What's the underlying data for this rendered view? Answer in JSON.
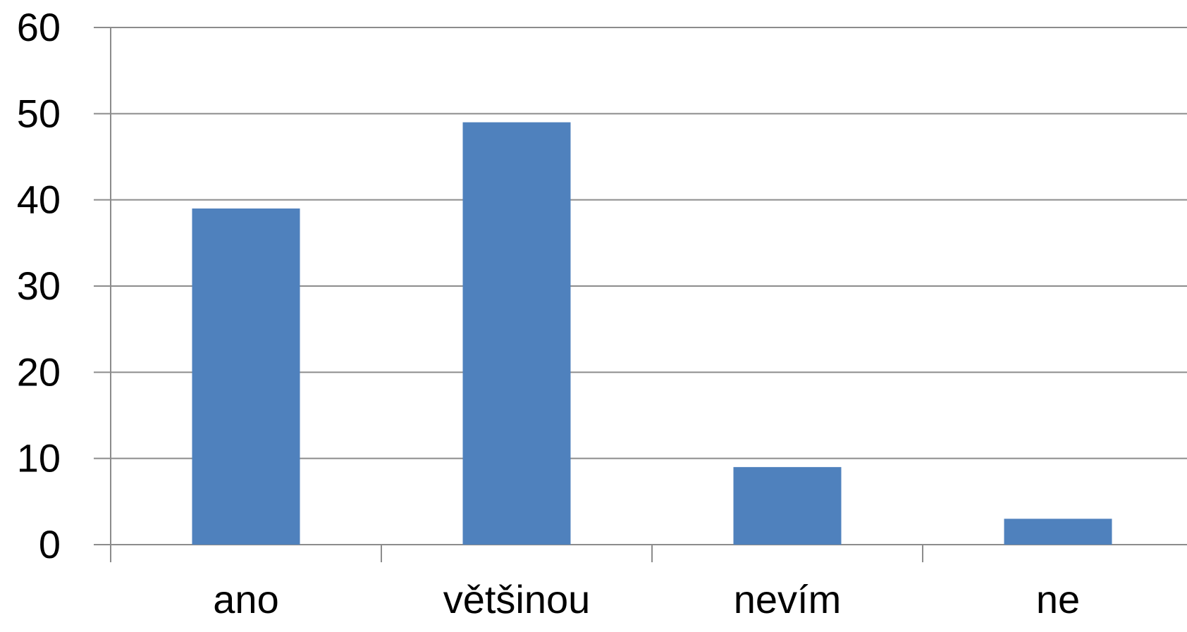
{
  "chart_data": {
    "type": "bar",
    "title": "",
    "xlabel": "",
    "ylabel": "",
    "categories": [
      "ano",
      "většinou",
      "nevím",
      "ne"
    ],
    "values": [
      39,
      49,
      9,
      3
    ],
    "ylim": [
      0,
      60
    ],
    "yticks": [
      0,
      10,
      20,
      30,
      40,
      50,
      60
    ],
    "ytick_labels": [
      "0",
      "10",
      "20",
      "30",
      "40",
      "50",
      "60"
    ],
    "grid": true,
    "legend": "none",
    "colors": {
      "bar": "#4f81bd",
      "grid": "#8c8c8c",
      "text": "#000000",
      "background": "#ffffff"
    }
  }
}
